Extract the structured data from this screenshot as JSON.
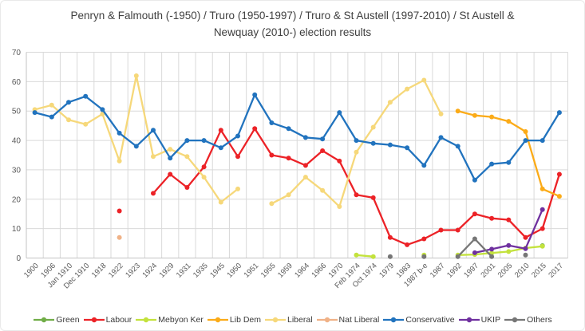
{
  "chart_data": {
    "type": "line",
    "title": "Penryn & Falmouth (-1950) / Truro (1950-1997) / Truro & St Austell (1997-2010) / St Austell & Newquay (2010-) election results",
    "xlabel": "",
    "ylabel": "",
    "ylim": [
      0,
      70
    ],
    "y_ticks": [
      0,
      10,
      20,
      30,
      40,
      50,
      60,
      70
    ],
    "grid": true,
    "legend_position": "bottom",
    "categories": [
      "1900",
      "1906",
      "Jan 1910",
      "Dec 1910",
      "1918",
      "1922",
      "1923",
      "1924",
      "1929",
      "1931",
      "1935",
      "1945",
      "1950",
      "1951",
      "1955",
      "1959",
      "1964",
      "1966",
      "1970",
      "Feb 1974",
      "Oct 1974",
      "1979",
      "1983",
      "1987 b-e",
      "1987",
      "1992",
      "1997",
      "2001",
      "2005",
      "2010",
      "2015",
      "2017"
    ],
    "series": [
      {
        "name": "Green",
        "color": "#70ad47",
        "values": [
          null,
          null,
          null,
          null,
          null,
          null,
          null,
          null,
          null,
          null,
          null,
          null,
          null,
          null,
          null,
          null,
          null,
          null,
          null,
          null,
          null,
          null,
          null,
          null,
          null,
          null,
          null,
          null,
          null,
          null,
          4.2,
          null
        ]
      },
      {
        "name": "Labour",
        "color": "#ec2227",
        "values": [
          null,
          null,
          null,
          null,
          null,
          16,
          null,
          22,
          28.5,
          24,
          31,
          43.5,
          34.5,
          44,
          35,
          34,
          31.5,
          36.5,
          33,
          21.5,
          20.5,
          7,
          4.5,
          6.5,
          9.5,
          9.5,
          15,
          13.5,
          13,
          7,
          10,
          28.5
        ]
      },
      {
        "name": "Mebyon Ker",
        "color": "#c3e23c",
        "values": [
          null,
          null,
          null,
          null,
          null,
          null,
          null,
          null,
          null,
          null,
          null,
          null,
          null,
          null,
          null,
          null,
          null,
          null,
          null,
          1,
          0.5,
          null,
          null,
          1,
          null,
          1,
          1.2,
          1.7,
          2.2,
          3.4,
          4,
          null
        ]
      },
      {
        "name": "Lib Dem",
        "color": "#fbab18",
        "values": [
          null,
          null,
          null,
          null,
          null,
          null,
          null,
          null,
          null,
          null,
          null,
          null,
          null,
          null,
          null,
          null,
          null,
          null,
          null,
          null,
          null,
          null,
          null,
          null,
          null,
          50,
          48.5,
          48,
          46.5,
          43,
          23.5,
          21
        ]
      },
      {
        "name": "Liberal",
        "color": "#f6d87a",
        "values": [
          50.5,
          52,
          47,
          45.5,
          49,
          33,
          62,
          34.5,
          37,
          34.5,
          27.5,
          19,
          23.5,
          null,
          18.5,
          21.5,
          27.5,
          23,
          17.5,
          36,
          44.5,
          53,
          57.5,
          60.5,
          49,
          null,
          null,
          null,
          null,
          null,
          null,
          null
        ]
      },
      {
        "name": "Nat Liberal",
        "color": "#f0b287",
        "values": [
          null,
          null,
          null,
          null,
          null,
          7,
          null,
          null,
          null,
          null,
          null,
          null,
          null,
          null,
          null,
          null,
          null,
          null,
          null,
          null,
          null,
          null,
          null,
          null,
          null,
          null,
          null,
          null,
          null,
          null,
          null,
          null
        ]
      },
      {
        "name": "Conservative",
        "color": "#2173be",
        "values": [
          49.5,
          48,
          53,
          55,
          50.5,
          42.5,
          38,
          43.5,
          34,
          40,
          40,
          37.5,
          41.5,
          55.5,
          46,
          44,
          41,
          40.5,
          49.5,
          40,
          39,
          38.5,
          37.5,
          31.5,
          41,
          38,
          26.5,
          32,
          32.5,
          40,
          40,
          49.5
        ]
      },
      {
        "name": "UKIP",
        "color": "#6f309f",
        "values": [
          null,
          null,
          null,
          null,
          null,
          null,
          null,
          null,
          null,
          null,
          null,
          null,
          null,
          null,
          null,
          null,
          null,
          null,
          null,
          null,
          null,
          null,
          null,
          null,
          null,
          null,
          1.8,
          3,
          4.3,
          3.2,
          16.5,
          null
        ]
      },
      {
        "name": "Others",
        "color": "#767676",
        "values": [
          null,
          null,
          null,
          null,
          null,
          null,
          null,
          null,
          null,
          null,
          null,
          null,
          null,
          null,
          null,
          null,
          null,
          null,
          null,
          null,
          null,
          0.5,
          null,
          0.5,
          null,
          0.5,
          6.5,
          0.5,
          null,
          1,
          null,
          null
        ]
      }
    ]
  },
  "style": {
    "gridline_color": "#d9d9d9",
    "axis_line_color": "#c3c3c3",
    "tick_label_color": "#595959",
    "title_color": "#3f3f3f"
  }
}
